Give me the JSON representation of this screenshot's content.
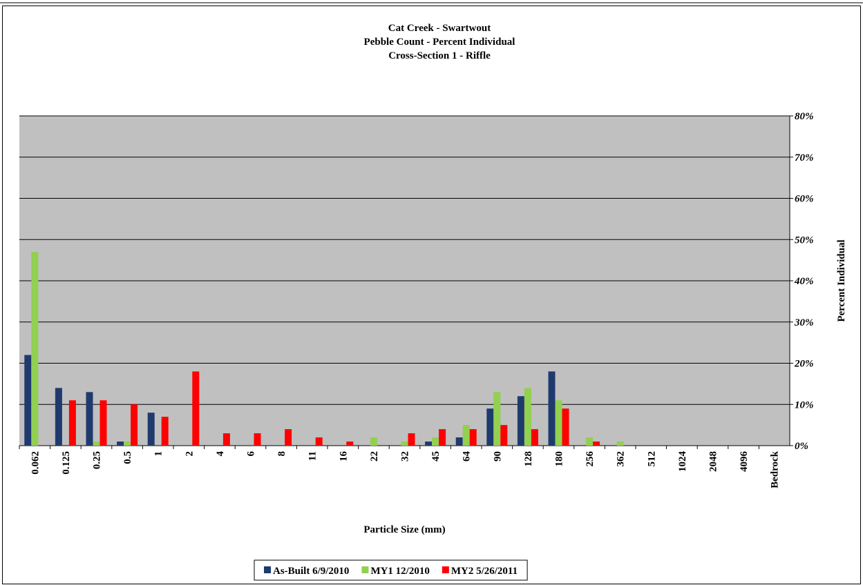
{
  "chart_data": {
    "type": "bar",
    "title": [
      "Cat Creek  - Swartwout",
      "Pebble Count - Percent Individual",
      "Cross-Section 1 - Riffle"
    ],
    "x_label": "Particle Size (mm)",
    "y_label": "Percent Individual",
    "categories": [
      "0.062",
      "0.125",
      "0.25",
      "0.5",
      "1",
      "2",
      "4",
      "6",
      "8",
      "11",
      "16",
      "22",
      "32",
      "45",
      "64",
      "90",
      "128",
      "180",
      "256",
      "362",
      "512",
      "1024",
      "2048",
      "4096",
      "Bedrock"
    ],
    "series": [
      {
        "name": "As-Built 6/9/2010",
        "color": "#1f3b6e",
        "values": [
          22,
          14,
          13,
          1,
          8,
          0,
          0,
          0,
          0,
          0,
          0,
          0,
          0,
          1,
          2,
          9,
          12,
          18,
          0,
          0,
          0,
          0,
          0,
          0,
          0
        ]
      },
      {
        "name": "MY1 12/2010",
        "color": "#92d050",
        "values": [
          47,
          0,
          1,
          1,
          0,
          0,
          0,
          0,
          0,
          0,
          0,
          2,
          1,
          2,
          5,
          13,
          14,
          11,
          2,
          1,
          0,
          0,
          0,
          0,
          0
        ]
      },
      {
        "name": "MY2 5/26/2011",
        "color": "#ff0000",
        "values": [
          0,
          11,
          11,
          10,
          7,
          18,
          3,
          3,
          4,
          2,
          1,
          0,
          3,
          4,
          4,
          5,
          4,
          9,
          1,
          0,
          0,
          0,
          0,
          0,
          0
        ]
      }
    ],
    "ylim": [
      0,
      80
    ],
    "yticks": [
      {
        "value": 0,
        "label": "0%"
      },
      {
        "value": 10,
        "label": "10%"
      },
      {
        "value": 20,
        "label": "20%"
      },
      {
        "value": 30,
        "label": "30%"
      },
      {
        "value": 40,
        "label": "40%"
      },
      {
        "value": 50,
        "label": "50%"
      },
      {
        "value": 60,
        "label": "60%"
      },
      {
        "value": 70,
        "label": "70%"
      },
      {
        "value": 80,
        "label": "80%"
      }
    ],
    "y_axis_side": "right",
    "grid": true,
    "legend": "bottom"
  }
}
